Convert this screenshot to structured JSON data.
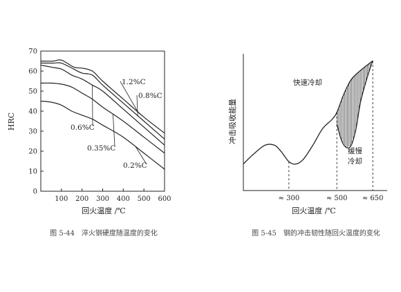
{
  "chart_data": [
    {
      "type": "line",
      "ylabel": "HRC",
      "xlabel": "回火温度 /℃",
      "caption": "图 5-44　淬火钢硬度随温度的变化",
      "xlim": [
        0,
        600
      ],
      "ylim": [
        0,
        70
      ],
      "x_ticks": [
        "100",
        "200",
        "300",
        "400",
        "500",
        "600"
      ],
      "y_ticks": [
        "0",
        "10",
        "20",
        "30",
        "40",
        "50",
        "60",
        "70"
      ],
      "series": [
        {
          "name": "1.2%C",
          "x": [
            0,
            60,
            100,
            160,
            200,
            250,
            300,
            400,
            500,
            600
          ],
          "y": [
            65,
            65,
            65.5,
            62,
            61.5,
            60,
            55,
            46,
            37,
            29
          ]
        },
        {
          "name": "0.8%C",
          "x": [
            0,
            60,
            100,
            160,
            200,
            250,
            300,
            400,
            500,
            600
          ],
          "y": [
            64,
            64,
            64,
            61,
            59,
            58,
            53,
            44,
            35,
            26
          ]
        },
        {
          "name": "0.6%C",
          "x": [
            0,
            50,
            100,
            150,
            200,
            250,
            300,
            400,
            500,
            600
          ],
          "y": [
            63,
            62,
            61,
            58,
            56,
            53,
            50,
            41,
            32,
            23
          ]
        },
        {
          "name": "0.35%C",
          "x": [
            0,
            50,
            100,
            150,
            200,
            250,
            300,
            400,
            500,
            600
          ],
          "y": [
            54,
            54,
            53.5,
            52,
            49,
            46,
            42,
            35,
            27,
            19
          ]
        },
        {
          "name": "0.2%C",
          "x": [
            0,
            50,
            100,
            150,
            200,
            250,
            300,
            400,
            500,
            600
          ],
          "y": [
            45,
            44.5,
            43,
            40,
            38,
            36,
            33,
            27,
            19,
            11
          ]
        }
      ],
      "annotations": [
        {
          "text": "1.2%C",
          "series": "1.2%C"
        },
        {
          "text": "0.8%C",
          "series": "0.8%C"
        },
        {
          "text": "0.6%C",
          "series": "0.6%C"
        },
        {
          "text": "0.35%C",
          "series": "0.35%C"
        },
        {
          "text": "0.2%C",
          "series": "0.2%C"
        }
      ]
    },
    {
      "type": "line",
      "ylabel": "冲击吸收能量",
      "xlabel": "回火温度 /℃",
      "caption": "图 5-45　钢的冲击韧性随回火温度的变化",
      "x_ticks": [
        "≈ 300",
        "≈ 500",
        "≈ 650"
      ],
      "x_tick_values": [
        300,
        500,
        650
      ],
      "xlim": [
        110,
        710
      ],
      "ylim": [
        0,
        100
      ],
      "series": [
        {
          "name": "快速冷却",
          "x": [
            110,
            150,
            200,
            240,
            270,
            300,
            330,
            360,
            400,
            440,
            480,
            500,
            530,
            560,
            600,
            650
          ],
          "y": [
            12,
            20,
            28,
            28,
            22,
            14,
            12,
            16,
            28,
            42,
            50,
            56,
            72,
            84,
            92,
            100
          ]
        },
        {
          "name": "缓慢冷却",
          "x": [
            500,
            520,
            540,
            560,
            580,
            600,
            630,
            650
          ],
          "y": [
            46,
            32,
            26,
            28,
            42,
            66,
            88,
            100
          ]
        }
      ],
      "annotations": [
        {
          "text": "快速冷却"
        },
        {
          "text": "缓慢"
        },
        {
          "text": "冷却"
        }
      ],
      "shaded_region": "between series 快速冷却 and 缓慢冷却 from ≈500 to ≈650 (vertical hatching)"
    }
  ]
}
